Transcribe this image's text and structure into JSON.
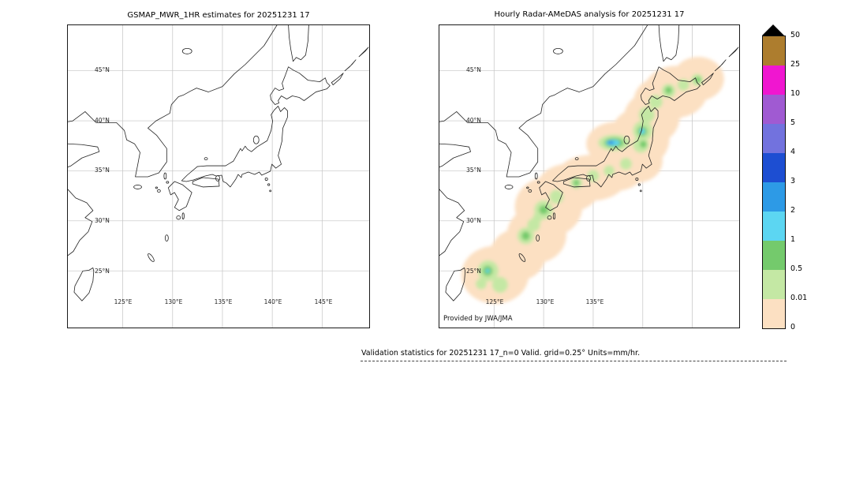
{
  "figure": {
    "left_panel": {
      "title": "GSMAP_MWR_1HR estimates for 20251231 17",
      "lat_labels": [
        "45°N",
        "40°N",
        "35°N",
        "30°N",
        "25°N"
      ],
      "lon_labels": [
        "125°E",
        "130°E",
        "135°E",
        "140°E",
        "145°E"
      ]
    },
    "right_panel": {
      "title": "Hourly Radar-AMeDAS analysis for 20251231 17",
      "lat_labels": [
        "45°N",
        "40°N",
        "35°N",
        "30°N",
        "25°N"
      ],
      "lon_labels": [
        "125°E",
        "130°E",
        "135°E"
      ],
      "credit": "Provided by JWA/JMA"
    },
    "caption": "Validation statistics for 20251231 17_n=0 Valid. grid=0.25° Units=mm/hr."
  },
  "colorbar": {
    "units": "mm/hr",
    "tick_labels": [
      "50",
      "25",
      "10",
      "5",
      "4",
      "3",
      "2",
      "1",
      "0.5",
      "0.01",
      "0"
    ],
    "cell_colors_top_to_bottom": [
      "#ad7d2e",
      "#f016d0",
      "#a05ad2",
      "#7272de",
      "#1d4ed2",
      "#2d9ae6",
      "#5cd6f2",
      "#74ca6c",
      "#c4e8a4",
      "#fce0c2"
    ],
    "overflow_marker_color": "#000000"
  },
  "chart_data": {
    "type": "heatmap",
    "units": "mm/hr",
    "value_boundaries": [
      0,
      0.01,
      0.5,
      1,
      2,
      3,
      4,
      5,
      10,
      25,
      50
    ],
    "lon_gridlines": [
      125,
      130,
      135,
      140,
      145
    ],
    "lat_gridlines": [
      25,
      30,
      35,
      40,
      45
    ],
    "level_ranges_mm_per_hr": [
      "0-0.01",
      "0.01-0.5",
      "0.5-1",
      "1-2",
      "2-3",
      "3-4"
    ],
    "panels": [
      {
        "title": "GSMAP_MWR_1HR estimates for 20251231 17",
        "n_points": 0,
        "description": "empty basemap, no satellite MWR estimates plotted (n=0)",
        "cells": []
      },
      {
        "title": "Hourly Radar-AMeDAS analysis for 20251231 17",
        "description": "analyzed hourly precipitation shaded along the Japanese archipelago; cells given as lon/lat center, radii in degrees, level index into level_ranges_mm_per_hr",
        "cells": [
          {
            "lon": 125.1,
            "lat": 24.6,
            "rx": 3.4,
            "ry": 2.9,
            "level": 0
          },
          {
            "lon": 127.4,
            "lat": 26.6,
            "rx": 2.8,
            "ry": 2.6,
            "level": 0
          },
          {
            "lon": 129.3,
            "lat": 28.6,
            "rx": 3.0,
            "ry": 2.8,
            "level": 0
          },
          {
            "lon": 130.5,
            "lat": 31.4,
            "rx": 3.4,
            "ry": 3.0,
            "level": 0
          },
          {
            "lon": 132.5,
            "lat": 33.3,
            "rx": 3.2,
            "ry": 2.4,
            "level": 0
          },
          {
            "lon": 134.8,
            "lat": 34.3,
            "rx": 3.6,
            "ry": 2.3,
            "level": 0
          },
          {
            "lon": 137.3,
            "lat": 35.3,
            "rx": 3.0,
            "ry": 2.3,
            "level": 0
          },
          {
            "lon": 139.4,
            "lat": 36.0,
            "rx": 2.6,
            "ry": 2.2,
            "level": 0
          },
          {
            "lon": 137.3,
            "lat": 37.7,
            "rx": 3.0,
            "ry": 2.2,
            "level": 0
          },
          {
            "lon": 139.7,
            "lat": 38.3,
            "rx": 3.0,
            "ry": 3.0,
            "level": 0
          },
          {
            "lon": 140.9,
            "lat": 40.3,
            "rx": 2.8,
            "ry": 2.6,
            "level": 0
          },
          {
            "lon": 141.9,
            "lat": 42.0,
            "rx": 2.8,
            "ry": 2.4,
            "level": 0
          },
          {
            "lon": 143.3,
            "lat": 42.9,
            "rx": 3.2,
            "ry": 2.6,
            "level": 0
          },
          {
            "lon": 145.6,
            "lat": 44.2,
            "rx": 2.6,
            "ry": 2.2,
            "level": 0
          },
          {
            "lon": 124.4,
            "lat": 25.0,
            "r": 1.05,
            "level": 1
          },
          {
            "lon": 125.6,
            "lat": 23.6,
            "r": 0.8,
            "level": 1
          },
          {
            "lon": 123.7,
            "lat": 23.7,
            "r": 0.55,
            "level": 1
          },
          {
            "lon": 128.2,
            "lat": 28.5,
            "r": 0.85,
            "level": 1
          },
          {
            "lon": 129.0,
            "lat": 29.6,
            "r": 0.65,
            "level": 1
          },
          {
            "lon": 130.0,
            "lat": 31.1,
            "r": 0.95,
            "level": 1
          },
          {
            "lon": 129.4,
            "lat": 30.3,
            "r": 0.5,
            "level": 1
          },
          {
            "lon": 131.3,
            "lat": 32.4,
            "r": 0.7,
            "level": 1
          },
          {
            "lon": 133.3,
            "lat": 33.8,
            "r": 0.6,
            "level": 1
          },
          {
            "lon": 135.0,
            "lat": 34.5,
            "r": 0.6,
            "level": 1
          },
          {
            "lon": 136.6,
            "lat": 35.0,
            "r": 0.55,
            "level": 1
          },
          {
            "lon": 138.3,
            "lat": 35.7,
            "r": 0.6,
            "level": 1
          },
          {
            "lon": 137.1,
            "lat": 37.8,
            "rx": 1.6,
            "ry": 0.8,
            "level": 1
          },
          {
            "lon": 139.8,
            "lat": 37.6,
            "r": 0.8,
            "level": 1
          },
          {
            "lon": 140.0,
            "lat": 39.0,
            "r": 1.0,
            "level": 1
          },
          {
            "lon": 140.4,
            "lat": 40.6,
            "r": 0.8,
            "level": 1
          },
          {
            "lon": 141.3,
            "lat": 41.9,
            "r": 0.7,
            "level": 1
          },
          {
            "lon": 142.6,
            "lat": 43.0,
            "r": 0.7,
            "level": 1
          },
          {
            "lon": 144.1,
            "lat": 43.6,
            "r": 0.6,
            "level": 1
          },
          {
            "lon": 145.5,
            "lat": 44.1,
            "r": 0.6,
            "level": 1
          },
          {
            "lon": 124.35,
            "lat": 25.0,
            "r": 0.5,
            "level": 2
          },
          {
            "lon": 128.2,
            "lat": 28.5,
            "r": 0.42,
            "level": 2
          },
          {
            "lon": 130.0,
            "lat": 31.1,
            "r": 0.45,
            "level": 2
          },
          {
            "lon": 133.3,
            "lat": 33.8,
            "r": 0.3,
            "level": 2
          },
          {
            "lon": 137.1,
            "lat": 37.8,
            "rx": 1.0,
            "ry": 0.5,
            "level": 2
          },
          {
            "lon": 139.95,
            "lat": 38.95,
            "r": 0.5,
            "level": 2
          },
          {
            "lon": 140.05,
            "lat": 37.65,
            "r": 0.35,
            "level": 2
          },
          {
            "lon": 142.6,
            "lat": 43.05,
            "r": 0.35,
            "level": 2
          },
          {
            "lon": 145.55,
            "lat": 44.1,
            "r": 0.3,
            "level": 2
          },
          {
            "lon": 137.0,
            "lat": 37.8,
            "rx": 0.7,
            "ry": 0.3,
            "level": 3
          },
          {
            "lon": 139.95,
            "lat": 38.95,
            "r": 0.27,
            "level": 3
          },
          {
            "lon": 124.35,
            "lat": 25.0,
            "r": 0.2,
            "level": 3
          },
          {
            "lon": 136.8,
            "lat": 37.82,
            "rx": 0.32,
            "ry": 0.17,
            "level": 4
          },
          {
            "lon": 136.68,
            "lat": 37.84,
            "rx": 0.15,
            "ry": 0.09,
            "level": 5
          }
        ]
      }
    ]
  }
}
